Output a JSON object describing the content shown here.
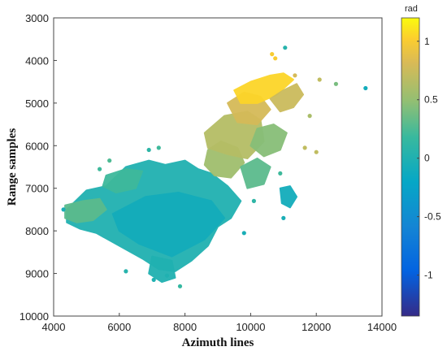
{
  "chart_data": {
    "type": "heatmap",
    "title": "",
    "xlabel": "Azimuth lines",
    "ylabel": "Range samples",
    "xlim": [
      4000,
      14000
    ],
    "ylim": [
      3000,
      10000
    ],
    "y_reversed": true,
    "xticks": [
      "4000",
      "6000",
      "8000",
      "10000",
      "12000",
      "14000"
    ],
    "yticks": [
      "3000",
      "4000",
      "5000",
      "6000",
      "7000",
      "8000",
      "9000",
      "10000"
    ],
    "colorbar": {
      "label": "rad",
      "range": [
        -1.35,
        1.2
      ],
      "ticks": [
        "1",
        "0.5",
        "0",
        "-0.5",
        "-1"
      ],
      "colormap": "parula"
    },
    "regions": [
      {
        "name": "main-body",
        "value": 0.0,
        "points": [
          [
            4400,
            7500
          ],
          [
            5000,
            7050
          ],
          [
            5600,
            6950
          ],
          [
            6200,
            6500
          ],
          [
            6900,
            6350
          ],
          [
            7400,
            6450
          ],
          [
            8000,
            6350
          ],
          [
            8400,
            6550
          ],
          [
            8800,
            6650
          ],
          [
            9300,
            6950
          ],
          [
            9700,
            7300
          ],
          [
            9400,
            7700
          ],
          [
            9000,
            7900
          ],
          [
            8700,
            8350
          ],
          [
            8200,
            8700
          ],
          [
            7700,
            8950
          ],
          [
            7200,
            8900
          ],
          [
            6700,
            8650
          ],
          [
            6000,
            8350
          ],
          [
            5300,
            8050
          ],
          [
            4800,
            7950
          ],
          [
            4400,
            7800
          ]
        ]
      },
      {
        "name": "center-fill",
        "value": -0.1,
        "points": [
          [
            5800,
            7600
          ],
          [
            6800,
            7200
          ],
          [
            7800,
            7100
          ],
          [
            8800,
            7300
          ],
          [
            9200,
            7700
          ],
          [
            8600,
            8200
          ],
          [
            7600,
            8600
          ],
          [
            6600,
            8300
          ],
          [
            6000,
            8000
          ]
        ]
      },
      {
        "name": "left-edge",
        "value": 0.3,
        "points": [
          [
            4350,
            7400
          ],
          [
            4900,
            7300
          ],
          [
            5400,
            7250
          ],
          [
            5600,
            7500
          ],
          [
            5200,
            7750
          ],
          [
            4700,
            7800
          ],
          [
            4350,
            7700
          ]
        ]
      },
      {
        "name": "upper-left-arm",
        "value": 0.2,
        "points": [
          [
            5600,
            6700
          ],
          [
            6200,
            6550
          ],
          [
            6700,
            6600
          ],
          [
            6500,
            7000
          ],
          [
            5900,
            7100
          ],
          [
            5500,
            6950
          ]
        ]
      },
      {
        "name": "mid-band",
        "value": 0.55,
        "points": [
          [
            8700,
            6100
          ],
          [
            9100,
            5900
          ],
          [
            9600,
            6050
          ],
          [
            9800,
            6400
          ],
          [
            9400,
            6750
          ],
          [
            8900,
            6700
          ],
          [
            8600,
            6450
          ]
        ]
      },
      {
        "name": "mid-upper",
        "value": 0.65,
        "points": [
          [
            8600,
            5700
          ],
          [
            9200,
            5300
          ],
          [
            9900,
            5200
          ],
          [
            10300,
            5400
          ],
          [
            10400,
            5900
          ],
          [
            9900,
            6300
          ],
          [
            9300,
            6200
          ],
          [
            8700,
            6050
          ]
        ]
      },
      {
        "name": "upper-mid",
        "value": 0.8,
        "points": [
          [
            9300,
            5000
          ],
          [
            9800,
            4750
          ],
          [
            10300,
            4850
          ],
          [
            10600,
            5150
          ],
          [
            10200,
            5500
          ],
          [
            9600,
            5450
          ]
        ]
      },
      {
        "name": "upper-arm",
        "value": 1.05,
        "points": [
          [
            9500,
            4700
          ],
          [
            10000,
            4500
          ],
          [
            10600,
            4350
          ],
          [
            11000,
            4300
          ],
          [
            11300,
            4450
          ],
          [
            10800,
            4800
          ],
          [
            10200,
            5000
          ],
          [
            9700,
            5000
          ]
        ]
      },
      {
        "name": "top-right-arm",
        "value": 0.75,
        "points": [
          [
            10600,
            4900
          ],
          [
            11000,
            4700
          ],
          [
            11400,
            4550
          ],
          [
            11600,
            4800
          ],
          [
            11300,
            5100
          ],
          [
            10900,
            5200
          ]
        ]
      },
      {
        "name": "right-lobe",
        "value": 0.45,
        "points": [
          [
            10200,
            5600
          ],
          [
            10700,
            5500
          ],
          [
            11100,
            5700
          ],
          [
            10900,
            6100
          ],
          [
            10400,
            6250
          ],
          [
            10000,
            6000
          ]
        ]
      },
      {
        "name": "right-lower",
        "value": 0.3,
        "points": [
          [
            9700,
            6500
          ],
          [
            10200,
            6300
          ],
          [
            10600,
            6500
          ],
          [
            10400,
            6900
          ],
          [
            9900,
            7000
          ]
        ]
      },
      {
        "name": "right-tail",
        "value": -0.1,
        "points": [
          [
            10900,
            7000
          ],
          [
            11200,
            6950
          ],
          [
            11400,
            7200
          ],
          [
            11200,
            7450
          ],
          [
            10950,
            7350
          ]
        ]
      },
      {
        "name": "lower-tail",
        "value": 0.0,
        "points": [
          [
            7000,
            8600
          ],
          [
            7600,
            8700
          ],
          [
            7700,
            9100
          ],
          [
            7300,
            9200
          ],
          [
            6900,
            9000
          ]
        ]
      }
    ],
    "points": [
      {
        "x": 11050,
        "y": 3700,
        "value": 0.05
      },
      {
        "x": 10650,
        "y": 3850,
        "value": 1.0
      },
      {
        "x": 10750,
        "y": 3950,
        "value": 1.0
      },
      {
        "x": 11350,
        "y": 4350,
        "value": 0.8
      },
      {
        "x": 12100,
        "y": 4450,
        "value": 0.7
      },
      {
        "x": 12600,
        "y": 4550,
        "value": 0.4
      },
      {
        "x": 13500,
        "y": 4650,
        "value": -0.1
      },
      {
        "x": 11800,
        "y": 5300,
        "value": 0.6
      },
      {
        "x": 11650,
        "y": 6050,
        "value": 0.7
      },
      {
        "x": 12000,
        "y": 6150,
        "value": 0.7
      },
      {
        "x": 10900,
        "y": 6650,
        "value": 0.2
      },
      {
        "x": 11000,
        "y": 7700,
        "value": -0.05
      },
      {
        "x": 10100,
        "y": 7300,
        "value": 0.1
      },
      {
        "x": 9800,
        "y": 8050,
        "value": -0.05
      },
      {
        "x": 6900,
        "y": 6100,
        "value": 0.1
      },
      {
        "x": 7200,
        "y": 6050,
        "value": 0.2
      },
      {
        "x": 5700,
        "y": 6350,
        "value": 0.25
      },
      {
        "x": 5400,
        "y": 6550,
        "value": 0.2
      },
      {
        "x": 4300,
        "y": 7500,
        "value": -0.05
      },
      {
        "x": 6200,
        "y": 8950,
        "value": 0.05
      },
      {
        "x": 7850,
        "y": 9300,
        "value": 0.15
      },
      {
        "x": 7450,
        "y": 9050,
        "value": 0.0
      },
      {
        "x": 7050,
        "y": 9150,
        "value": 0.0
      }
    ]
  }
}
